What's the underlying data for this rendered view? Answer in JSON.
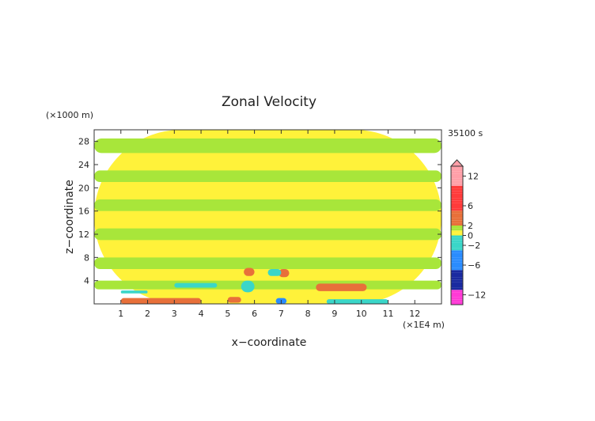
{
  "chart_data": {
    "type": "heatmap",
    "title": "Zonal Velocity",
    "xlabel": "x−coordinate",
    "ylabel": "z−coordinate",
    "x_unit": "(×1E4 m)",
    "y_unit": "(×1000 m)",
    "time_label": "35100 s",
    "xlim": [
      0,
      13
    ],
    "ylim": [
      0,
      30
    ],
    "xticks": [
      "1",
      "2",
      "3",
      "4",
      "5",
      "6",
      "7",
      "8",
      "9",
      "10",
      "11",
      "12"
    ],
    "yticks": [
      "4",
      "8",
      "12",
      "16",
      "20",
      "24",
      "28"
    ],
    "colorbar": {
      "tick_labels": [
        "12",
        "6",
        "2",
        "0",
        "−2",
        "−6",
        "−12"
      ],
      "tick_values": [
        12,
        6,
        2,
        0,
        -2,
        -6,
        -12
      ],
      "range": [
        -14,
        14
      ],
      "colors": {
        "very_strong_positive": "#ff9fa8",
        "strong_positive": "#ff3b3b",
        "moderate_positive": "#e8703a",
        "weak_positive": "#fff23a",
        "near_zero": "#a8e63a",
        "weak_negative": "#3ad6c8",
        "moderate_negative": "#2a8cff",
        "strong_negative": "#1a2aa0",
        "very_strong_negative": "#ff3ad6"
      }
    },
    "regions": [
      {
        "x": [
          0.0,
          13.0
        ],
        "z": [
          0.0,
          30.0
        ],
        "u": 0.5
      },
      {
        "x": [
          0.0,
          13.0
        ],
        "z": [
          26.0,
          28.5
        ],
        "u": 1.2
      },
      {
        "x": [
          0.0,
          13.0
        ],
        "z": [
          21.0,
          23.0
        ],
        "u": 1.2
      },
      {
        "x": [
          0.0,
          13.0
        ],
        "z": [
          16.0,
          18.0
        ],
        "u": 1.2
      },
      {
        "x": [
          0.0,
          13.0
        ],
        "z": [
          11.0,
          13.0
        ],
        "u": 1.2
      },
      {
        "x": [
          0.0,
          13.0
        ],
        "z": [
          6.0,
          8.0
        ],
        "u": 1.2
      },
      {
        "x": [
          0.0,
          13.0
        ],
        "z": [
          2.5,
          4.0
        ],
        "u": 1.2
      },
      {
        "x": [
          1.0,
          4.0
        ],
        "z": [
          0.0,
          1.0
        ],
        "u": 3.0
      },
      {
        "x": [
          5.0,
          5.5
        ],
        "z": [
          0.2,
          1.2
        ],
        "u": 3.0
      },
      {
        "x": [
          5.6,
          6.0
        ],
        "z": [
          4.8,
          6.2
        ],
        "u": 3.0
      },
      {
        "x": [
          6.9,
          7.3
        ],
        "z": [
          4.6,
          6.0
        ],
        "u": 3.0
      },
      {
        "x": [
          8.3,
          10.2
        ],
        "z": [
          2.2,
          3.5
        ],
        "u": 3.0
      },
      {
        "x": [
          3.0,
          4.6
        ],
        "z": [
          2.8,
          3.6
        ],
        "u": -2.0
      },
      {
        "x": [
          1.0,
          2.0
        ],
        "z": [
          1.8,
          2.3
        ],
        "u": -2.0
      },
      {
        "x": [
          5.5,
          6.0
        ],
        "z": [
          2.0,
          4.0
        ],
        "u": -2.0
      },
      {
        "x": [
          6.5,
          7.0
        ],
        "z": [
          4.8,
          6.0
        ],
        "u": -2.0
      },
      {
        "x": [
          8.7,
          11.0
        ],
        "z": [
          0.0,
          0.8
        ],
        "u": -2.0
      },
      {
        "x": [
          6.8,
          7.2
        ],
        "z": [
          0.0,
          1.0
        ],
        "u": -5.0
      }
    ]
  }
}
